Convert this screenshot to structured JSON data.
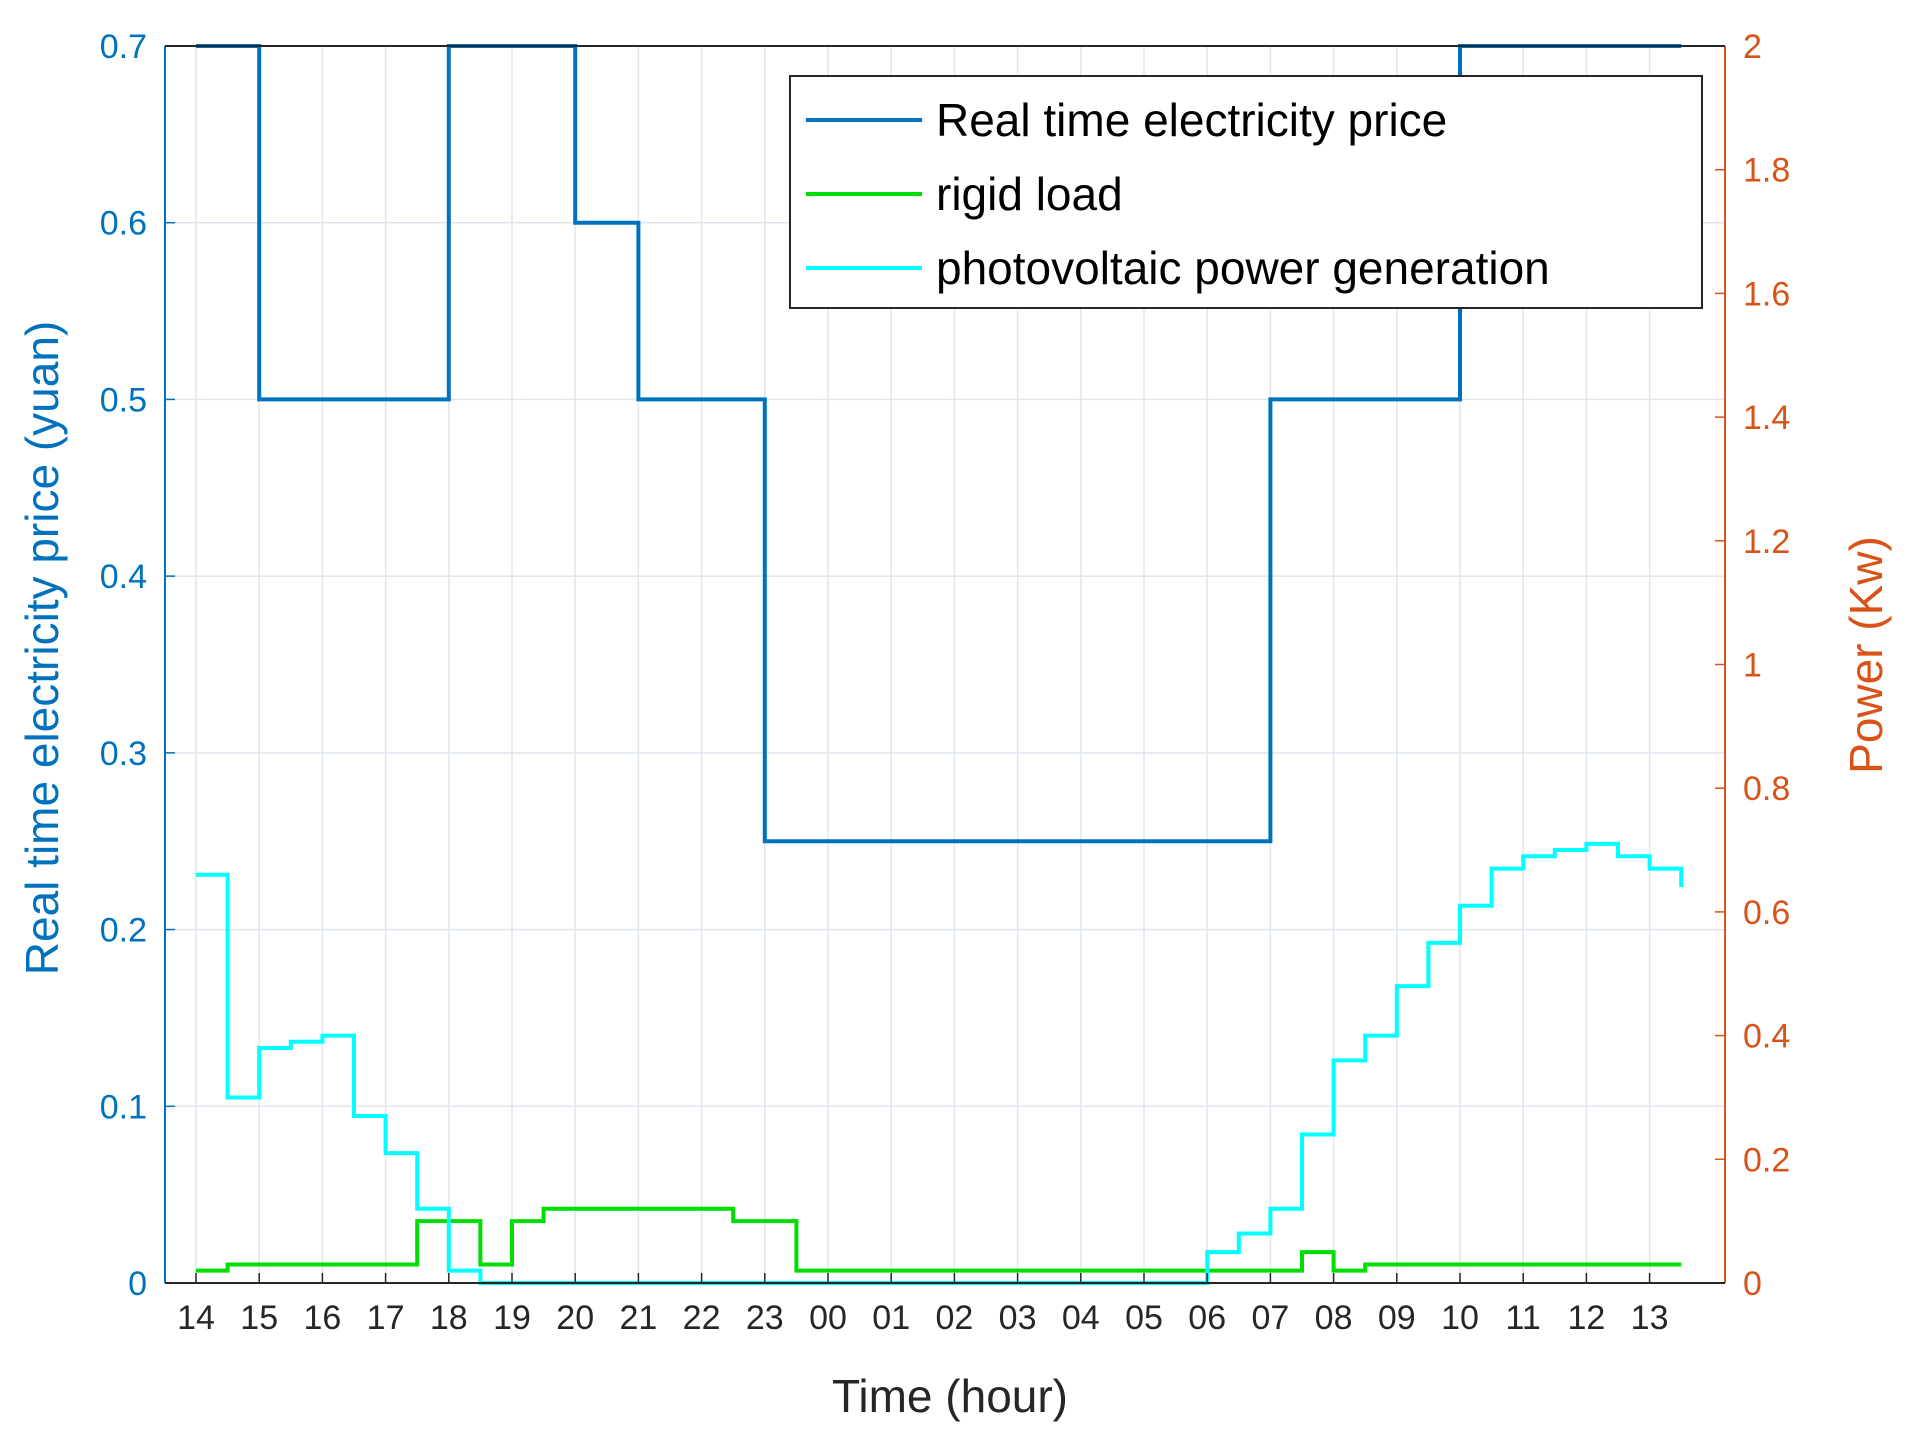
{
  "chart_data": {
    "type": "line",
    "step": true,
    "x": [
      "14",
      "14.5",
      "15",
      "15.5",
      "16",
      "16.5",
      "17",
      "17.5",
      "18",
      "18.5",
      "19",
      "19.5",
      "20",
      "20.5",
      "21",
      "21.5",
      "22",
      "22.5",
      "23",
      "23.5",
      "00",
      "00.5",
      "01",
      "01.5",
      "02",
      "02.5",
      "03",
      "03.5",
      "04",
      "04.5",
      "05",
      "05.5",
      "06",
      "06.5",
      "07",
      "07.5",
      "08",
      "08.5",
      "09",
      "09.5",
      "10",
      "10.5",
      "11",
      "11.5",
      "12",
      "12.5",
      "13",
      "13.5"
    ],
    "categories": [
      "14",
      "15",
      "16",
      "17",
      "18",
      "19",
      "20",
      "21",
      "22",
      "23",
      "00",
      "01",
      "02",
      "03",
      "04",
      "05",
      "06",
      "07",
      "08",
      "09",
      "10",
      "11",
      "12",
      "13"
    ],
    "xlabel": "Time (hour)",
    "ylabel_left": "Real time electricity price (yuan)",
    "ylabel_right": "Power (Kw)",
    "ylim_left": [
      0,
      0.7
    ],
    "ylim_right": [
      0,
      2
    ],
    "yticks_left": [
      "0",
      "0.1",
      "0.2",
      "0.3",
      "0.4",
      "0.5",
      "0.6",
      "0.7"
    ],
    "yticks_right": [
      "0",
      "0.2",
      "0.4",
      "0.6",
      "0.8",
      "1",
      "1.2",
      "1.4",
      "1.6",
      "1.8",
      "2"
    ],
    "grid": true,
    "legend_position": "top-right",
    "series": [
      {
        "name": "Real time electricity price",
        "axis": "left",
        "color": "#0072BD",
        "values": [
          0.7,
          0.7,
          0.5,
          0.5,
          0.5,
          0.5,
          0.5,
          0.5,
          0.7,
          0.7,
          0.7,
          0.7,
          0.6,
          0.6,
          0.5,
          0.5,
          0.5,
          0.5,
          0.25,
          0.25,
          0.25,
          0.25,
          0.25,
          0.25,
          0.25,
          0.25,
          0.25,
          0.25,
          0.25,
          0.25,
          0.25,
          0.25,
          0.25,
          0.25,
          0.5,
          0.5,
          0.5,
          0.5,
          0.5,
          0.5,
          0.7,
          0.7,
          0.7,
          0.7,
          0.7,
          0.7,
          0.7,
          0.7
        ]
      },
      {
        "name": "rigid load",
        "axis": "right",
        "color": "#00DD00",
        "values": [
          0.02,
          0.03,
          0.03,
          0.03,
          0.03,
          0.03,
          0.03,
          0.1,
          0.1,
          0.03,
          0.1,
          0.12,
          0.12,
          0.12,
          0.12,
          0.12,
          0.12,
          0.1,
          0.1,
          0.02,
          0.02,
          0.02,
          0.02,
          0.02,
          0.02,
          0.02,
          0.02,
          0.02,
          0.02,
          0.02,
          0.02,
          0.02,
          0.02,
          0.02,
          0.02,
          0.05,
          0.02,
          0.03,
          0.03,
          0.03,
          0.03,
          0.03,
          0.03,
          0.03,
          0.03,
          0.03,
          0.03,
          0.03
        ]
      },
      {
        "name": "photovoltaic power generation",
        "axis": "right",
        "color": "#00FFFF",
        "values": [
          0.66,
          0.3,
          0.38,
          0.39,
          0.4,
          0.27,
          0.21,
          0.12,
          0.02,
          0,
          0,
          0,
          0,
          0,
          0,
          0,
          0,
          0,
          0,
          0,
          0,
          0,
          0,
          0,
          0,
          0,
          0,
          0,
          0,
          0,
          0,
          0,
          0.05,
          0.08,
          0.12,
          0.24,
          0.36,
          0.4,
          0.48,
          0.55,
          0.61,
          0.67,
          0.69,
          0.7,
          0.71,
          0.69,
          0.67,
          0.64
        ]
      }
    ]
  }
}
